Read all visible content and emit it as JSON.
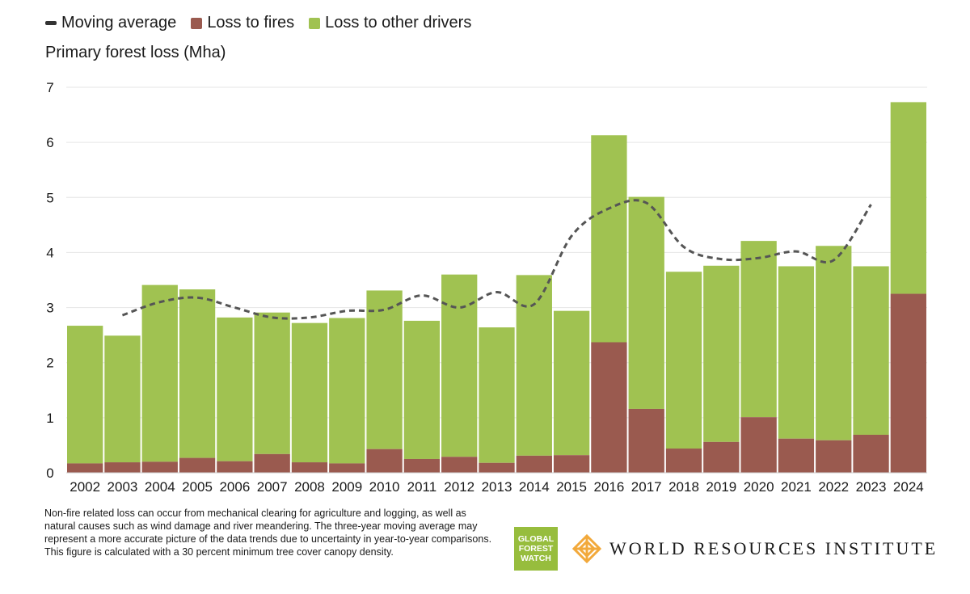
{
  "legend": {
    "moving_average": "Moving average",
    "fires": "Loss to fires",
    "other": "Loss to other drivers"
  },
  "colors": {
    "fires": "#9a5a4f",
    "other": "#a0c251",
    "moving_average": "#555555",
    "grid": "#e6e6e6"
  },
  "chart_data": {
    "type": "bar",
    "stacked": true,
    "title": "",
    "ylabel": "Primary forest loss (Mha)",
    "xlabel": "",
    "ylim": [
      0,
      7
    ],
    "yticks": [
      0,
      1,
      2,
      3,
      4,
      5,
      6,
      7
    ],
    "grid": true,
    "legend_position": "top-left",
    "categories": [
      "2002",
      "2003",
      "2004",
      "2005",
      "2006",
      "2007",
      "2008",
      "2009",
      "2010",
      "2011",
      "2012",
      "2013",
      "2014",
      "2015",
      "2016",
      "2017",
      "2018",
      "2019",
      "2020",
      "2021",
      "2022",
      "2023",
      "2024"
    ],
    "series": [
      {
        "name": "Loss to fires",
        "values": [
          0.17,
          0.19,
          0.2,
          0.27,
          0.21,
          0.34,
          0.19,
          0.17,
          0.43,
          0.25,
          0.29,
          0.18,
          0.31,
          0.32,
          2.37,
          1.16,
          0.44,
          0.56,
          1.01,
          0.62,
          0.59,
          0.69,
          3.25
        ]
      },
      {
        "name": "Loss to other drivers",
        "values": [
          2.5,
          2.3,
          3.21,
          3.06,
          2.61,
          2.57,
          2.53,
          2.64,
          2.88,
          2.51,
          3.31,
          2.46,
          3.28,
          2.62,
          3.76,
          3.85,
          3.21,
          3.2,
          3.2,
          3.13,
          3.53,
          3.06,
          3.48
        ]
      }
    ],
    "moving_average": {
      "name": "Moving average",
      "values": [
        null,
        2.86,
        3.1,
        3.18,
        3.0,
        2.82,
        2.82,
        2.94,
        2.96,
        3.22,
        3.0,
        3.28,
        3.06,
        4.3,
        4.8,
        4.9,
        4.1,
        3.88,
        3.9,
        4.02,
        3.86,
        4.87,
        null
      ]
    }
  },
  "footnote": "Non-fire related loss can occur from mechanical clearing for agriculture and logging, as well as natural causes such as wind damage and river meandering. The three-year moving average may represent a more accurate picture of the data trends due to uncertainty in year-to-year comparisons. This figure is calculated with a 30 percent minimum tree cover canopy density.",
  "logos": {
    "gfw": [
      "GLOBAL",
      "FOREST",
      "WATCH"
    ],
    "wri": "WORLD RESOURCES INSTITUTE"
  }
}
